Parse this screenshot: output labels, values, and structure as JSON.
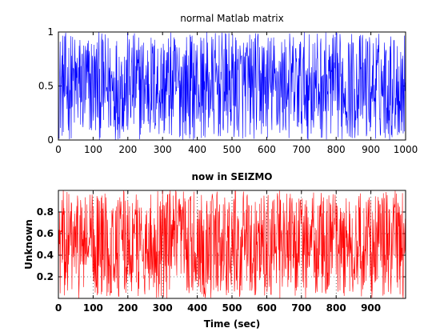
{
  "chart_data": [
    {
      "type": "line",
      "title": "normal Matlab matrix",
      "xlabel": "",
      "ylabel": "",
      "xlim": [
        0,
        1000
      ],
      "ylim": [
        0,
        1
      ],
      "xticks": [
        "0",
        "100",
        "200",
        "300",
        "400",
        "500",
        "600",
        "700",
        "800",
        "900",
        "1000"
      ],
      "yticks": [
        "0",
        "0.5",
        "1"
      ],
      "grid": false,
      "series": [
        {
          "color": "#0000ff",
          "n_points": 1000,
          "value_range": [
            0,
            1
          ],
          "mean": 0.5,
          "distribution": "uniform random"
        }
      ]
    },
    {
      "type": "line",
      "title": "now in SEIZMO",
      "xlabel": "Time (sec)",
      "ylabel": "Unknown",
      "xlim": [
        0,
        1000
      ],
      "ylim": [
        0,
        1
      ],
      "xticks": [
        "0",
        "100",
        "200",
        "300",
        "400",
        "500",
        "600",
        "700",
        "800",
        "900"
      ],
      "yticks": [
        "0.2",
        "0.4",
        "0.6",
        "0.8"
      ],
      "grid": true,
      "series": [
        {
          "color": "#ff0000",
          "n_points": 1000,
          "value_range": [
            0,
            1
          ],
          "mean": 0.5,
          "distribution": "uniform random"
        }
      ]
    }
  ]
}
